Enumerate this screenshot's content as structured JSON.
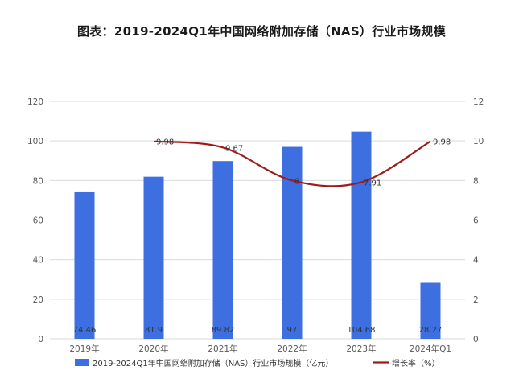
{
  "page_title": "图表：2019-2024Q1年中国网络附加存储（NAS）行业市场规模",
  "colors": {
    "bar": "#3d6fe0",
    "line": "#9e1b1b",
    "grid": "#d9d9d9",
    "axis_text": "#595959"
  },
  "chart_data": {
    "type": "bar",
    "title": "图表：2019-2024Q1年中国网络附加存储（NAS）行业市场规模",
    "categories": [
      "2019年",
      "2020年",
      "2021年",
      "2022年",
      "2023年",
      "2024年Q1"
    ],
    "series": [
      {
        "name": "2019-2024Q1年中国网络附加存储（NAS）行业市场规模（亿元）",
        "type": "bar",
        "axis": "left",
        "values": [
          74.46,
          81.9,
          89.82,
          97,
          104.68,
          28.27
        ],
        "labels": [
          "74.46",
          "81.9",
          "89.82",
          "97",
          "104.68",
          "28.27"
        ]
      },
      {
        "name": "增长率（%）",
        "type": "line",
        "axis": "right",
        "values": [
          null,
          9.98,
          9.67,
          8,
          7.91,
          9.98
        ],
        "labels": [
          "",
          "9.98",
          "9.67",
          "8",
          "7.91",
          "9.98"
        ]
      }
    ],
    "y_left": {
      "ylim": [
        0,
        120
      ],
      "ticks": [
        "0",
        "20",
        "40",
        "60",
        "80",
        "100",
        "120"
      ]
    },
    "y_right": {
      "ylim": [
        0,
        12
      ],
      "ticks": [
        "0",
        "2",
        "4",
        "6",
        "8",
        "10",
        "12"
      ]
    },
    "grid": true,
    "legend": "bottom"
  }
}
